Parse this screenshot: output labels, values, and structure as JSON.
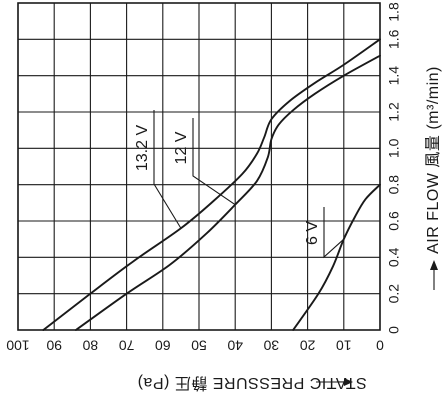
{
  "chart_data": {
    "type": "line",
    "title": "",
    "xlabel": "STATIC PRESSURE 静圧 (Pa)",
    "ylabel": "AIR FLOW 風量 (m³/min)",
    "x_ticks": [
      100,
      90,
      80,
      70,
      60,
      50,
      40,
      30,
      20,
      10,
      0
    ],
    "y_ticks": [
      0,
      0.2,
      0.4,
      0.6,
      0.8,
      1.0,
      1.2,
      1.4,
      1.6,
      1.8
    ],
    "xlim": [
      100,
      0
    ],
    "ylim": [
      0,
      1.8
    ],
    "x_direction": "decreasing",
    "grid": true,
    "series": [
      {
        "name": "13.2 V",
        "x": [
          93,
          80,
          68,
          55,
          46,
          38,
          34,
          32,
          30,
          25,
          18,
          10,
          0
        ],
        "y": [
          0,
          0.2,
          0.38,
          0.56,
          0.71,
          0.86,
          0.97,
          1.06,
          1.16,
          1.26,
          1.36,
          1.46,
          1.6
        ]
      },
      {
        "name": "12 V",
        "x": [
          84,
          70,
          58,
          48,
          40,
          34,
          31,
          30,
          28,
          24,
          18,
          10,
          0
        ],
        "y": [
          0,
          0.2,
          0.36,
          0.53,
          0.69,
          0.82,
          0.95,
          1.05,
          1.13,
          1.21,
          1.3,
          1.4,
          1.51
        ]
      },
      {
        "name": "6 V",
        "x": [
          24,
          17,
          13,
          10,
          7,
          4,
          0
        ],
        "y": [
          0,
          0.2,
          0.35,
          0.5,
          0.62,
          0.72,
          0.8
        ]
      }
    ]
  }
}
